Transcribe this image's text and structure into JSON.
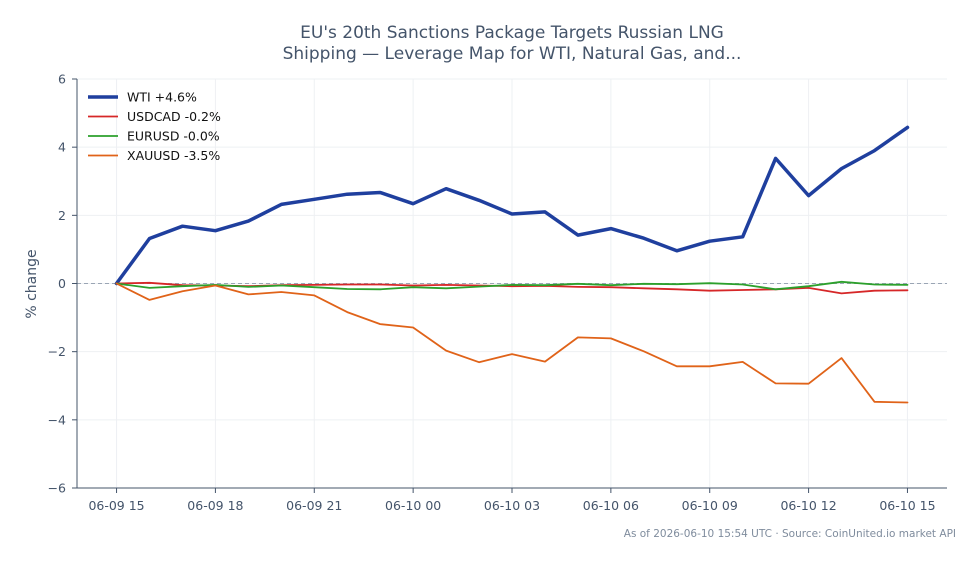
{
  "chart_data": {
    "type": "line",
    "title_lines": [
      "EU's 20th Sanctions Package Targets Russian LNG",
      "Shipping — Leverage Map for WTI, Natural Gas, and..."
    ],
    "xlabel": "",
    "ylabel": "% change",
    "x_ticks": [
      "06-09 15",
      "06-09 18",
      "06-09 21",
      "06-10 00",
      "06-10 03",
      "06-10 06",
      "06-10 09",
      "06-10 12",
      "06-10 15"
    ],
    "x_tick_positions": [
      0,
      3,
      6,
      9,
      12,
      15,
      18,
      21,
      24
    ],
    "x_range": [
      -1.2,
      25.2
    ],
    "ylim": [
      -6,
      6
    ],
    "y_ticks": [
      6,
      4,
      2,
      0,
      -2,
      -4,
      -6
    ],
    "y_tick_labels": [
      "6",
      "4",
      "2",
      "0",
      "−2",
      "−4",
      "−6"
    ],
    "grid": true,
    "zero_line": true,
    "legend_position": "top-left",
    "series": [
      {
        "name": "WTI +4.6%",
        "color": "#1f3f9e",
        "width": 3.5,
        "values": [
          0,
          1.32,
          1.68,
          1.55,
          1.83,
          2.32,
          2.47,
          2.62,
          2.67,
          2.34,
          2.78,
          2.44,
          2.04,
          2.1,
          1.42,
          1.61,
          1.33,
          0.96,
          1.24,
          1.37,
          3.67,
          2.58,
          3.37,
          3.9,
          4.58
        ]
      },
      {
        "name": "USDCAD -0.2%",
        "color": "#d62728",
        "width": 1.8,
        "values": [
          0,
          0.02,
          -0.05,
          -0.06,
          -0.08,
          -0.05,
          -0.04,
          -0.03,
          -0.03,
          -0.06,
          -0.04,
          -0.06,
          -0.08,
          -0.07,
          -0.1,
          -0.11,
          -0.14,
          -0.17,
          -0.21,
          -0.19,
          -0.17,
          -0.13,
          -0.29,
          -0.21,
          -0.2
        ]
      },
      {
        "name": "EURUSD -0.0%",
        "color": "#2ca02c",
        "width": 1.8,
        "values": [
          0,
          -0.13,
          -0.08,
          -0.04,
          -0.1,
          -0.06,
          -0.11,
          -0.16,
          -0.17,
          -0.11,
          -0.14,
          -0.09,
          -0.04,
          -0.05,
          -0.01,
          -0.05,
          -0.01,
          -0.02,
          0.01,
          -0.03,
          -0.17,
          -0.08,
          0.05,
          -0.03,
          -0.04
        ]
      },
      {
        "name": "XAUUSD -3.5%",
        "color": "#e06319",
        "width": 1.8,
        "values": [
          0,
          -0.48,
          -0.23,
          -0.06,
          -0.32,
          -0.25,
          -0.35,
          -0.84,
          -1.19,
          -1.29,
          -1.97,
          -2.31,
          -2.07,
          -2.29,
          -1.58,
          -1.61,
          -1.99,
          -2.43,
          -2.43,
          -2.3,
          -2.93,
          -2.94,
          -2.19,
          -3.47,
          -3.49
        ]
      }
    ]
  },
  "footer": "As of 2026-06-10 15:54 UTC · Source: CoinUnited.io market API"
}
